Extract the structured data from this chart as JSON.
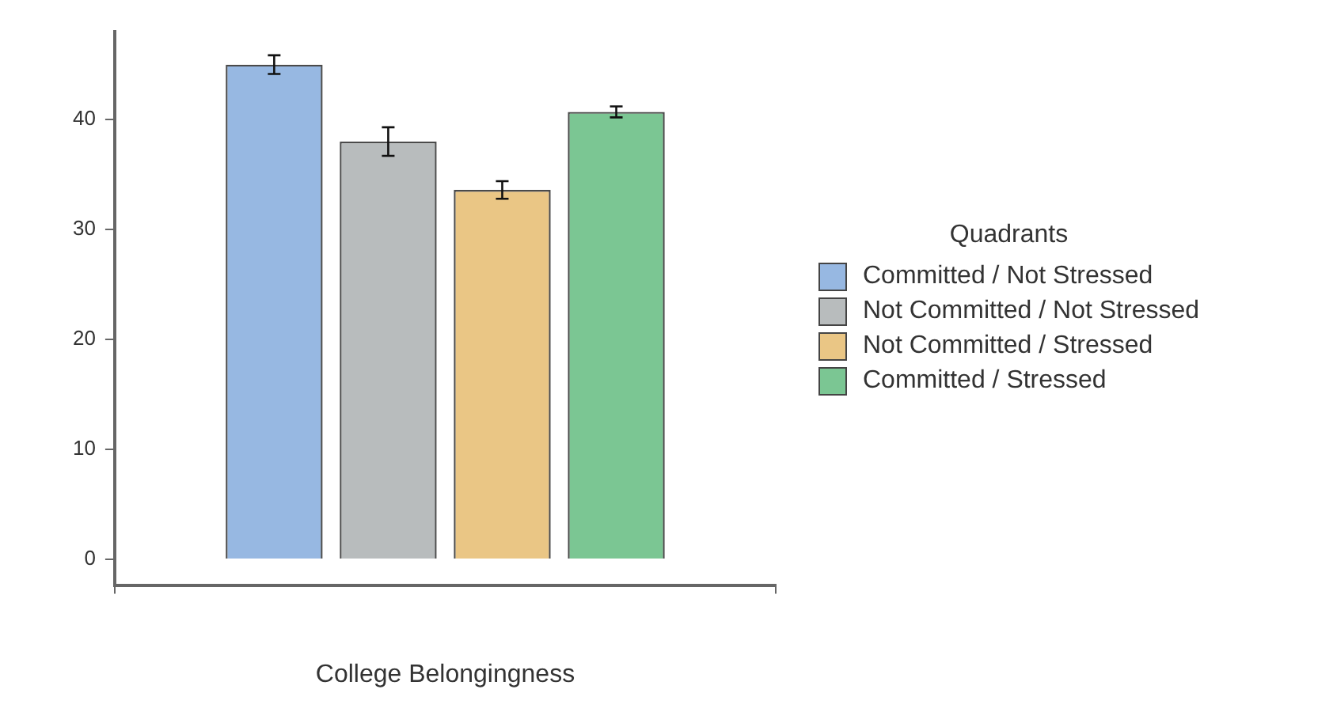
{
  "chart_data": {
    "type": "bar",
    "xlabel": "College Belongingness",
    "legend_title": "Quadrants",
    "legend": "right",
    "grid": false,
    "categories": [
      null
    ],
    "ylim": [
      -2.4,
      48
    ],
    "yticks": [
      0,
      10,
      20,
      30,
      40
    ],
    "series": [
      {
        "name": "Committed / Not Stressed",
        "color": "#97b8e2",
        "values": [
          45.0
        ],
        "errors": [
          0.85
        ]
      },
      {
        "name": "Not Committed / Not Stressed",
        "color": "#b8bcbd",
        "values": [
          38.0
        ],
        "errors": [
          1.3
        ]
      },
      {
        "name": "Not Committed / Stressed",
        "color": "#eac685",
        "values": [
          33.6
        ],
        "errors": [
          0.8
        ]
      },
      {
        "name": "Committed / Stressed",
        "color": "#7bc693",
        "values": [
          40.7
        ],
        "errors": [
          0.5
        ]
      }
    ]
  }
}
